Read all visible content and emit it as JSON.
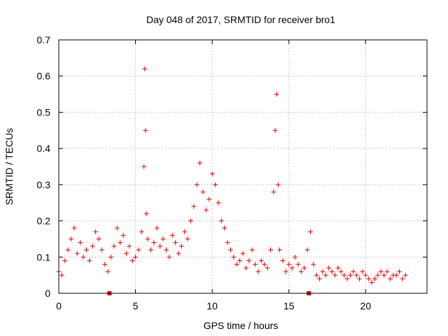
{
  "chart_data": {
    "type": "scatter",
    "title": "Day 048 of 2017, SRMTID for receiver bro1",
    "xlabel": "GPS time / hours",
    "ylabel": "SRMTID / TECUs",
    "xlim": [
      0,
      24
    ],
    "ylim": [
      0,
      0.7
    ],
    "xticks": [
      0,
      5,
      10,
      15,
      20
    ],
    "xtick_labels": [
      "0",
      "5",
      "10",
      "15",
      "20"
    ],
    "yticks": [
      0,
      0.1,
      0.2,
      0.3,
      0.4,
      0.5,
      0.6,
      0.7
    ],
    "ytick_labels": [
      "0",
      "0.1",
      "0.2",
      "0.3",
      "0.4",
      "0.5",
      "0.6",
      "0.7"
    ],
    "grid": true,
    "marker": "+",
    "color": "#e00000",
    "series": [
      {
        "name": "SRMTID",
        "x": [
          0.0,
          0.2,
          0.4,
          0.6,
          0.8,
          1.0,
          1.2,
          1.4,
          1.6,
          1.8,
          2.0,
          2.2,
          2.4,
          2.6,
          2.8,
          3.0,
          3.2,
          3.4,
          3.6,
          3.8,
          4.0,
          4.2,
          4.4,
          4.6,
          4.8,
          5.0,
          5.2,
          5.4,
          5.55,
          5.6,
          5.65,
          5.7,
          5.8,
          6.0,
          6.2,
          6.4,
          6.6,
          6.8,
          7.0,
          7.2,
          7.4,
          7.6,
          7.8,
          8.0,
          8.2,
          8.4,
          8.6,
          8.8,
          9.0,
          9.2,
          9.4,
          9.6,
          9.8,
          10.0,
          10.2,
          10.4,
          10.6,
          10.8,
          11.0,
          11.2,
          11.4,
          11.6,
          11.8,
          12.0,
          12.2,
          12.4,
          12.6,
          12.8,
          13.0,
          13.2,
          13.4,
          13.6,
          13.8,
          14.0,
          14.1,
          14.2,
          14.3,
          14.4,
          14.6,
          14.8,
          15.0,
          15.2,
          15.4,
          15.6,
          15.8,
          16.0,
          16.2,
          16.4,
          16.6,
          16.8,
          17.0,
          17.2,
          17.4,
          17.6,
          17.8,
          18.0,
          18.2,
          18.4,
          18.6,
          18.8,
          19.0,
          19.2,
          19.4,
          19.6,
          19.8,
          20.0,
          20.2,
          20.4,
          20.6,
          20.8,
          21.0,
          21.2,
          21.4,
          21.6,
          21.8,
          22.0,
          22.2,
          22.4,
          22.6
        ],
        "y": [
          0.06,
          0.05,
          0.09,
          0.12,
          0.15,
          0.18,
          0.11,
          0.14,
          0.1,
          0.12,
          0.09,
          0.13,
          0.17,
          0.15,
          0.12,
          0.08,
          0.06,
          0.1,
          0.13,
          0.18,
          0.14,
          0.16,
          0.11,
          0.13,
          0.09,
          0.1,
          0.12,
          0.17,
          0.35,
          0.62,
          0.45,
          0.22,
          0.15,
          0.12,
          0.14,
          0.18,
          0.13,
          0.15,
          0.12,
          0.1,
          0.16,
          0.14,
          0.11,
          0.13,
          0.17,
          0.15,
          0.2,
          0.24,
          0.3,
          0.36,
          0.28,
          0.23,
          0.26,
          0.33,
          0.3,
          0.25,
          0.2,
          0.18,
          0.14,
          0.12,
          0.1,
          0.08,
          0.09,
          0.11,
          0.07,
          0.09,
          0.12,
          0.08,
          0.06,
          0.09,
          0.08,
          0.07,
          0.12,
          0.28,
          0.45,
          0.55,
          0.3,
          0.12,
          0.09,
          0.06,
          0.08,
          0.07,
          0.1,
          0.08,
          0.06,
          0.07,
          0.12,
          0.17,
          0.08,
          0.05,
          0.04,
          0.06,
          0.05,
          0.07,
          0.06,
          0.05,
          0.07,
          0.06,
          0.05,
          0.04,
          0.05,
          0.06,
          0.05,
          0.04,
          0.06,
          0.05,
          0.04,
          0.03,
          0.04,
          0.05,
          0.06,
          0.05,
          0.06,
          0.04,
          0.05,
          0.05,
          0.06,
          0.04,
          0.05
        ]
      }
    ],
    "bottom_markers_x": [
      3.3,
      16.3
    ]
  }
}
